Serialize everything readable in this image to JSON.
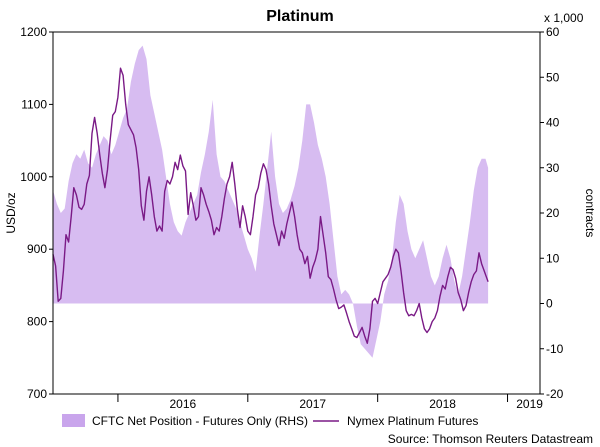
{
  "chart_data": {
    "type": "line",
    "title": "Platinum",
    "ylabel": "USD/oz",
    "y2label": "contracts",
    "y2unit": "x 1,000",
    "ylim": [
      700,
      1200
    ],
    "y2lim": [
      -20,
      60
    ],
    "yticks": [
      "700",
      "800",
      "900",
      "1000",
      "1100",
      "1200"
    ],
    "y2ticks": [
      "-20",
      "-10",
      "0",
      "10",
      "20",
      "30",
      "40",
      "50",
      "60"
    ],
    "xlim": [
      2015.5,
      2019.25
    ],
    "xticks": [
      {
        "label": "2016",
        "at": 2016.5
      },
      {
        "label": "2017",
        "at": 2017.5
      },
      {
        "label": "2018",
        "at": 2018.5
      },
      {
        "label": "2019",
        "at": 2019.17
      }
    ],
    "xdividers": [
      2016,
      2017,
      2018,
      2019
    ],
    "source": "Source: Thomson Reuters Datastream",
    "series": [
      {
        "name": "CFTC Net Position - Futures Only (RHS)",
        "type": "area",
        "axis": "right",
        "color": "#c9a5ec",
        "points": [
          [
            2015.5,
            25
          ],
          [
            2015.53,
            22
          ],
          [
            2015.56,
            20
          ],
          [
            2015.59,
            21
          ],
          [
            2015.62,
            27
          ],
          [
            2015.65,
            31
          ],
          [
            2015.68,
            33
          ],
          [
            2015.71,
            32
          ],
          [
            2015.74,
            34
          ],
          [
            2015.77,
            31
          ],
          [
            2015.8,
            30
          ],
          [
            2015.83,
            33
          ],
          [
            2015.86,
            35
          ],
          [
            2015.89,
            37
          ],
          [
            2015.92,
            36
          ],
          [
            2015.95,
            33
          ],
          [
            2015.98,
            35
          ],
          [
            2016.01,
            38
          ],
          [
            2016.04,
            41
          ],
          [
            2016.07,
            43
          ],
          [
            2016.1,
            49
          ],
          [
            2016.13,
            53
          ],
          [
            2016.16,
            56
          ],
          [
            2016.19,
            57
          ],
          [
            2016.22,
            54
          ],
          [
            2016.25,
            46
          ],
          [
            2016.28,
            42
          ],
          [
            2016.31,
            38
          ],
          [
            2016.34,
            34
          ],
          [
            2016.37,
            28
          ],
          [
            2016.4,
            22
          ],
          [
            2016.43,
            18
          ],
          [
            2016.46,
            16
          ],
          [
            2016.49,
            15
          ],
          [
            2016.52,
            18
          ],
          [
            2016.55,
            20
          ],
          [
            2016.58,
            22
          ],
          [
            2016.61,
            24
          ],
          [
            2016.64,
            29
          ],
          [
            2016.67,
            33
          ],
          [
            2016.7,
            38
          ],
          [
            2016.73,
            45
          ],
          [
            2016.76,
            33
          ],
          [
            2016.79,
            28
          ],
          [
            2016.82,
            27
          ],
          [
            2016.85,
            25
          ],
          [
            2016.88,
            23
          ],
          [
            2016.91,
            21
          ],
          [
            2016.94,
            18
          ],
          [
            2016.97,
            15
          ],
          [
            2017.0,
            12
          ],
          [
            2017.03,
            10
          ],
          [
            2017.06,
            7
          ],
          [
            2017.09,
            15
          ],
          [
            2017.12,
            22
          ],
          [
            2017.15,
            30
          ],
          [
            2017.18,
            38
          ],
          [
            2017.21,
            28
          ],
          [
            2017.24,
            22
          ],
          [
            2017.27,
            20
          ],
          [
            2017.3,
            21
          ],
          [
            2017.33,
            23
          ],
          [
            2017.36,
            26
          ],
          [
            2017.39,
            30
          ],
          [
            2017.42,
            36
          ],
          [
            2017.45,
            44
          ],
          [
            2017.48,
            44
          ],
          [
            2017.51,
            40
          ],
          [
            2017.54,
            35
          ],
          [
            2017.57,
            32
          ],
          [
            2017.6,
            28
          ],
          [
            2017.63,
            22
          ],
          [
            2017.66,
            14
          ],
          [
            2017.69,
            6
          ],
          [
            2017.72,
            2
          ],
          [
            2017.75,
            3
          ],
          [
            2017.78,
            2
          ],
          [
            2017.81,
            0
          ],
          [
            2017.84,
            -5
          ],
          [
            2017.87,
            -9
          ],
          [
            2017.9,
            -10
          ],
          [
            2017.93,
            -11
          ],
          [
            2017.96,
            -12
          ],
          [
            2017.99,
            -8
          ],
          [
            2018.02,
            -4
          ],
          [
            2018.05,
            2
          ],
          [
            2018.08,
            5
          ],
          [
            2018.11,
            10
          ],
          [
            2018.14,
            18
          ],
          [
            2018.17,
            24
          ],
          [
            2018.2,
            22
          ],
          [
            2018.23,
            16
          ],
          [
            2018.26,
            12
          ],
          [
            2018.29,
            10
          ],
          [
            2018.32,
            12
          ],
          [
            2018.35,
            14
          ],
          [
            2018.38,
            10
          ],
          [
            2018.41,
            6
          ],
          [
            2018.44,
            4
          ],
          [
            2018.47,
            6
          ],
          [
            2018.5,
            10
          ],
          [
            2018.53,
            13
          ],
          [
            2018.56,
            10
          ],
          [
            2018.59,
            5
          ],
          [
            2018.62,
            2
          ],
          [
            2018.65,
            6
          ],
          [
            2018.68,
            12
          ],
          [
            2018.71,
            18
          ],
          [
            2018.74,
            25
          ],
          [
            2018.77,
            30
          ],
          [
            2018.8,
            32
          ],
          [
            2018.83,
            32
          ],
          [
            2018.85,
            30
          ]
        ]
      },
      {
        "name": "Nymex Platinum Futures",
        "type": "line",
        "axis": "left",
        "color": "#7a1a86",
        "points": [
          [
            2015.5,
            893
          ],
          [
            2015.52,
            877
          ],
          [
            2015.54,
            828
          ],
          [
            2015.56,
            832
          ],
          [
            2015.58,
            870
          ],
          [
            2015.6,
            920
          ],
          [
            2015.62,
            910
          ],
          [
            2015.64,
            945
          ],
          [
            2015.66,
            985
          ],
          [
            2015.68,
            975
          ],
          [
            2015.7,
            958
          ],
          [
            2015.72,
            955
          ],
          [
            2015.74,
            962
          ],
          [
            2015.76,
            990
          ],
          [
            2015.78,
            1002
          ],
          [
            2015.8,
            1060
          ],
          [
            2015.82,
            1082
          ],
          [
            2015.84,
            1060
          ],
          [
            2015.86,
            1030
          ],
          [
            2015.88,
            1005
          ],
          [
            2015.9,
            985
          ],
          [
            2015.92,
            1010
          ],
          [
            2015.94,
            1050
          ],
          [
            2015.96,
            1085
          ],
          [
            2015.98,
            1090
          ],
          [
            2016.0,
            1110
          ],
          [
            2016.02,
            1150
          ],
          [
            2016.04,
            1140
          ],
          [
            2016.06,
            1100
          ],
          [
            2016.08,
            1072
          ],
          [
            2016.1,
            1065
          ],
          [
            2016.12,
            1058
          ],
          [
            2016.14,
            1040
          ],
          [
            2016.16,
            1010
          ],
          [
            2016.18,
            960
          ],
          [
            2016.2,
            940
          ],
          [
            2016.22,
            980
          ],
          [
            2016.24,
            1000
          ],
          [
            2016.26,
            975
          ],
          [
            2016.28,
            945
          ],
          [
            2016.3,
            925
          ],
          [
            2016.32,
            932
          ],
          [
            2016.34,
            925
          ],
          [
            2016.36,
            980
          ],
          [
            2016.38,
            995
          ],
          [
            2016.4,
            990
          ],
          [
            2016.42,
            1000
          ],
          [
            2016.44,
            1020
          ],
          [
            2016.46,
            1010
          ],
          [
            2016.48,
            1030
          ],
          [
            2016.5,
            1015
          ],
          [
            2016.52,
            1008
          ],
          [
            2016.54,
            948
          ],
          [
            2016.56,
            978
          ],
          [
            2016.58,
            960
          ],
          [
            2016.6,
            940
          ],
          [
            2016.62,
            945
          ],
          [
            2016.64,
            985
          ],
          [
            2016.66,
            975
          ],
          [
            2016.68,
            962
          ],
          [
            2016.7,
            952
          ],
          [
            2016.72,
            940
          ],
          [
            2016.74,
            920
          ],
          [
            2016.76,
            930
          ],
          [
            2016.78,
            925
          ],
          [
            2016.8,
            945
          ],
          [
            2016.82,
            970
          ],
          [
            2016.84,
            990
          ],
          [
            2016.86,
            1000
          ],
          [
            2016.88,
            1020
          ],
          [
            2016.9,
            990
          ],
          [
            2016.92,
            955
          ],
          [
            2016.94,
            930
          ],
          [
            2016.96,
            960
          ],
          [
            2016.98,
            945
          ],
          [
            2017.0,
            925
          ],
          [
            2017.02,
            920
          ],
          [
            2017.04,
            945
          ],
          [
            2017.06,
            975
          ],
          [
            2017.08,
            985
          ],
          [
            2017.1,
            1005
          ],
          [
            2017.12,
            1018
          ],
          [
            2017.14,
            1010
          ],
          [
            2017.16,
            990
          ],
          [
            2017.18,
            960
          ],
          [
            2017.2,
            935
          ],
          [
            2017.22,
            920
          ],
          [
            2017.24,
            905
          ],
          [
            2017.26,
            925
          ],
          [
            2017.28,
            915
          ],
          [
            2017.3,
            935
          ],
          [
            2017.32,
            950
          ],
          [
            2017.34,
            965
          ],
          [
            2017.36,
            945
          ],
          [
            2017.38,
            920
          ],
          [
            2017.4,
            900
          ],
          [
            2017.42,
            895
          ],
          [
            2017.44,
            880
          ],
          [
            2017.46,
            890
          ],
          [
            2017.48,
            860
          ],
          [
            2017.5,
            875
          ],
          [
            2017.52,
            885
          ],
          [
            2017.54,
            900
          ],
          [
            2017.56,
            945
          ],
          [
            2017.58,
            920
          ],
          [
            2017.6,
            895
          ],
          [
            2017.62,
            862
          ],
          [
            2017.64,
            858
          ],
          [
            2017.66,
            845
          ],
          [
            2017.68,
            830
          ],
          [
            2017.7,
            818
          ],
          [
            2017.72,
            820
          ],
          [
            2017.74,
            823
          ],
          [
            2017.76,
            812
          ],
          [
            2017.78,
            800
          ],
          [
            2017.8,
            790
          ],
          [
            2017.82,
            780
          ],
          [
            2017.84,
            778
          ],
          [
            2017.86,
            785
          ],
          [
            2017.88,
            792
          ],
          [
            2017.9,
            780
          ],
          [
            2017.92,
            770
          ],
          [
            2017.94,
            790
          ],
          [
            2017.96,
            828
          ],
          [
            2017.98,
            832
          ],
          [
            2018.0,
            825
          ],
          [
            2018.02,
            840
          ],
          [
            2018.04,
            855
          ],
          [
            2018.06,
            860
          ],
          [
            2018.08,
            865
          ],
          [
            2018.1,
            875
          ],
          [
            2018.12,
            890
          ],
          [
            2018.14,
            900
          ],
          [
            2018.16,
            895
          ],
          [
            2018.18,
            870
          ],
          [
            2018.2,
            840
          ],
          [
            2018.22,
            815
          ],
          [
            2018.24,
            808
          ],
          [
            2018.26,
            810
          ],
          [
            2018.28,
            808
          ],
          [
            2018.3,
            815
          ],
          [
            2018.32,
            825
          ],
          [
            2018.34,
            805
          ],
          [
            2018.36,
            790
          ],
          [
            2018.38,
            785
          ],
          [
            2018.4,
            790
          ],
          [
            2018.42,
            800
          ],
          [
            2018.44,
            805
          ],
          [
            2018.46,
            815
          ],
          [
            2018.48,
            835
          ],
          [
            2018.5,
            850
          ],
          [
            2018.52,
            845
          ],
          [
            2018.54,
            862
          ],
          [
            2018.56,
            875
          ],
          [
            2018.58,
            872
          ],
          [
            2018.6,
            860
          ],
          [
            2018.62,
            840
          ],
          [
            2018.64,
            830
          ],
          [
            2018.66,
            815
          ],
          [
            2018.68,
            822
          ],
          [
            2018.7,
            840
          ],
          [
            2018.72,
            855
          ],
          [
            2018.74,
            865
          ],
          [
            2018.76,
            870
          ],
          [
            2018.78,
            895
          ],
          [
            2018.8,
            880
          ],
          [
            2018.82,
            870
          ],
          [
            2018.84,
            860
          ],
          [
            2018.85,
            855
          ]
        ]
      }
    ]
  }
}
